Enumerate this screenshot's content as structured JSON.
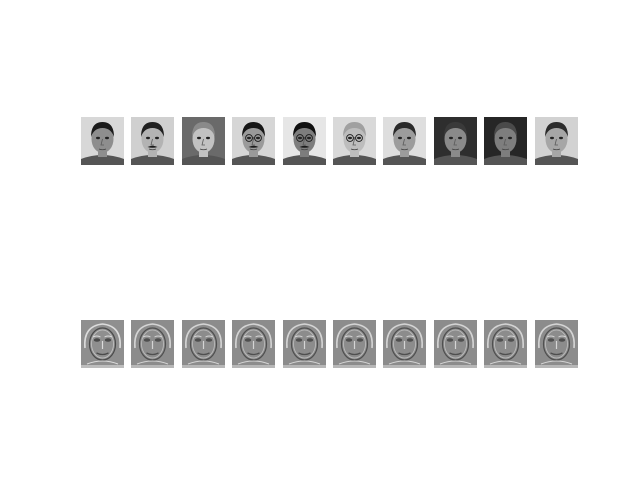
{
  "figure": {
    "rows": [
      {
        "kind": "face-photographs",
        "tiles": [
          {
            "hair": "#1b1b1b",
            "skin": "#8e8e8e",
            "bg": "#d8d8d8",
            "glasses": false,
            "mustache": false
          },
          {
            "hair": "#202020",
            "skin": "#b3b3b3",
            "bg": "#d0d0d0",
            "glasses": false,
            "mustache": true
          },
          {
            "hair": "#8a8a8a",
            "skin": "#c2c2c2",
            "bg": "#6a6a6a",
            "glasses": false,
            "mustache": false
          },
          {
            "hair": "#161616",
            "skin": "#9a9a9a",
            "bg": "#d6d6d6",
            "glasses": true,
            "mustache": true
          },
          {
            "hair": "#101010",
            "skin": "#7d7d7d",
            "bg": "#e6e6e6",
            "glasses": true,
            "mustache": true
          },
          {
            "hair": "#a0a0a0",
            "skin": "#bdbdbd",
            "bg": "#d9d9d9",
            "glasses": true,
            "mustache": false
          },
          {
            "hair": "#2a2a2a",
            "skin": "#9c9c9c",
            "bg": "#dedede",
            "glasses": false,
            "mustache": false
          },
          {
            "hair": "#3a3a3a",
            "skin": "#8a8a8a",
            "bg": "#2e2e2e",
            "glasses": false,
            "mustache": false
          },
          {
            "hair": "#4a4a4a",
            "skin": "#7e7e7e",
            "bg": "#262626",
            "glasses": false,
            "mustache": false
          },
          {
            "hair": "#2c2c2c",
            "skin": "#a6a6a6",
            "bg": "#d2d2d2",
            "glasses": false,
            "mustache": false
          }
        ]
      },
      {
        "kind": "eigenface-reconstructions",
        "tiles": [
          {
            "bg": "#8f8f8f",
            "edge": "#dcdcdc",
            "dark": "#4a4a4a"
          },
          {
            "bg": "#8c8c8c",
            "edge": "#d4d4d4",
            "dark": "#4f4f4f"
          },
          {
            "bg": "#8c8c8c",
            "edge": "#d4d4d4",
            "dark": "#4f4f4f"
          },
          {
            "bg": "#8c8c8c",
            "edge": "#d4d4d4",
            "dark": "#4f4f4f"
          },
          {
            "bg": "#8c8c8c",
            "edge": "#d4d4d4",
            "dark": "#4f4f4f"
          },
          {
            "bg": "#8c8c8c",
            "edge": "#d4d4d4",
            "dark": "#4f4f4f"
          },
          {
            "bg": "#8c8c8c",
            "edge": "#d4d4d4",
            "dark": "#4f4f4f"
          },
          {
            "bg": "#8c8c8c",
            "edge": "#d4d4d4",
            "dark": "#4f4f4f"
          },
          {
            "bg": "#8c8c8c",
            "edge": "#d4d4d4",
            "dark": "#4f4f4f"
          },
          {
            "bg": "#8c8c8c",
            "edge": "#d4d4d4",
            "dark": "#4f4f4f"
          }
        ]
      }
    ]
  }
}
